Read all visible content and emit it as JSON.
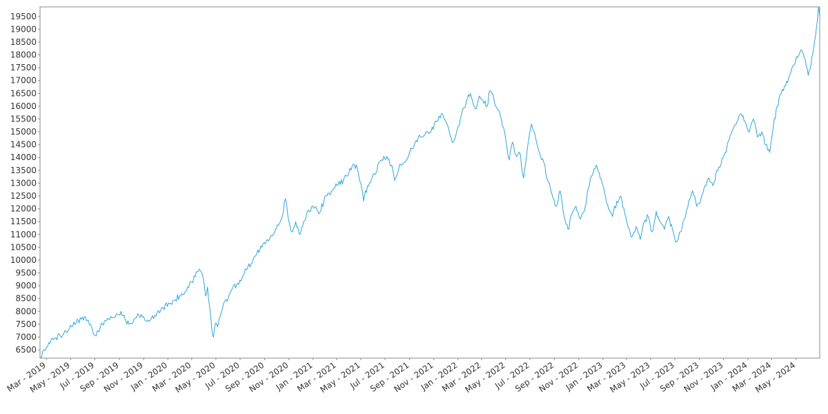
{
  "chart_data": {
    "type": "line",
    "title": "",
    "xlabel": "",
    "ylabel": "",
    "xlim": [
      "2019-02-13",
      "2024-06-30"
    ],
    "ylim": [
      6180,
      19870
    ],
    "grid": false,
    "legend": "none",
    "colors": {
      "line": "#2ba3db",
      "axis": "#888888",
      "text": "#333333"
    },
    "y_ticks": [
      6500,
      7000,
      7500,
      8000,
      8500,
      9000,
      9500,
      10000,
      10500,
      11000,
      11500,
      12000,
      12500,
      13000,
      13500,
      14000,
      14500,
      15000,
      15500,
      16000,
      16500,
      17000,
      17500,
      18000,
      18500,
      19000,
      19500
    ],
    "x_ticks": [
      {
        "date": "2019-03-01",
        "label": "Mar - 2019"
      },
      {
        "date": "2019-05-01",
        "label": "May - 2019"
      },
      {
        "date": "2019-07-01",
        "label": "Jul - 2019"
      },
      {
        "date": "2019-09-01",
        "label": "Sep - 2019"
      },
      {
        "date": "2019-11-01",
        "label": "Nov - 2019"
      },
      {
        "date": "2020-01-01",
        "label": "Jan - 2020"
      },
      {
        "date": "2020-03-01",
        "label": "Mar - 2020"
      },
      {
        "date": "2020-05-01",
        "label": "May - 2020"
      },
      {
        "date": "2020-07-01",
        "label": "Jul - 2020"
      },
      {
        "date": "2020-09-01",
        "label": "Sep - 2020"
      },
      {
        "date": "2020-11-01",
        "label": "Nov - 2020"
      },
      {
        "date": "2021-01-01",
        "label": "Jan - 2021"
      },
      {
        "date": "2021-03-01",
        "label": "Mar - 2021"
      },
      {
        "date": "2021-05-01",
        "label": "May - 2021"
      },
      {
        "date": "2021-07-01",
        "label": "Jul - 2021"
      },
      {
        "date": "2021-09-01",
        "label": "Sep - 2021"
      },
      {
        "date": "2021-11-01",
        "label": "Nov - 2021"
      },
      {
        "date": "2022-01-01",
        "label": "Jan - 2022"
      },
      {
        "date": "2022-03-01",
        "label": "Mar - 2022"
      },
      {
        "date": "2022-05-01",
        "label": "May - 2022"
      },
      {
        "date": "2022-07-01",
        "label": "Jul - 2022"
      },
      {
        "date": "2022-09-01",
        "label": "Sep - 2022"
      },
      {
        "date": "2022-11-01",
        "label": "Nov - 2022"
      },
      {
        "date": "2023-01-01",
        "label": "Jan - 2023"
      },
      {
        "date": "2023-03-01",
        "label": "Mar - 2023"
      },
      {
        "date": "2023-05-01",
        "label": "May - 2023"
      },
      {
        "date": "2023-07-01",
        "label": "Jul - 2023"
      },
      {
        "date": "2023-09-01",
        "label": "Sep - 2023"
      },
      {
        "date": "2023-11-01",
        "label": "Nov - 2023"
      },
      {
        "date": "2024-01-01",
        "label": "Jan - 2024"
      },
      {
        "date": "2024-03-01",
        "label": "Mar - 2024"
      },
      {
        "date": "2024-05-01",
        "label": "May - 2024"
      }
    ],
    "series": [
      {
        "points": [
          [
            "2019-02-14",
            6200
          ],
          [
            "2019-02-20",
            6450
          ],
          [
            "2019-03-01",
            6600
          ],
          [
            "2019-03-10",
            6750
          ],
          [
            "2019-03-22",
            6950
          ],
          [
            "2019-04-05",
            7050
          ],
          [
            "2019-04-20",
            7200
          ],
          [
            "2019-05-03",
            7400
          ],
          [
            "2019-05-15",
            7550
          ],
          [
            "2019-05-28",
            7700
          ],
          [
            "2019-06-05",
            7800
          ],
          [
            "2019-06-15",
            7650
          ],
          [
            "2019-06-25",
            7300
          ],
          [
            "2019-07-05",
            7050
          ],
          [
            "2019-07-15",
            7400
          ],
          [
            "2019-07-28",
            7650
          ],
          [
            "2019-08-10",
            7800
          ],
          [
            "2019-08-25",
            7900
          ],
          [
            "2019-09-05",
            8000
          ],
          [
            "2019-09-15",
            7700
          ],
          [
            "2019-09-25",
            7500
          ],
          [
            "2019-10-08",
            7700
          ],
          [
            "2019-10-20",
            7850
          ],
          [
            "2019-11-01",
            7800
          ],
          [
            "2019-11-10",
            7600
          ],
          [
            "2019-11-20",
            7700
          ],
          [
            "2019-12-05",
            7950
          ],
          [
            "2019-12-20",
            8150
          ],
          [
            "2020-01-05",
            8300
          ],
          [
            "2020-01-20",
            8450
          ],
          [
            "2020-02-05",
            8700
          ],
          [
            "2020-02-20",
            8950
          ],
          [
            "2020-03-01",
            9150
          ],
          [
            "2020-03-10",
            9350
          ],
          [
            "2020-03-20",
            9650
          ],
          [
            "2020-03-30",
            9300
          ],
          [
            "2020-04-05",
            8600
          ],
          [
            "2020-04-10",
            8950
          ],
          [
            "2020-04-15",
            8200
          ],
          [
            "2020-04-20",
            7400
          ],
          [
            "2020-04-25",
            7000
          ],
          [
            "2020-04-30",
            7550
          ],
          [
            "2020-05-05",
            7400
          ],
          [
            "2020-05-12",
            7800
          ],
          [
            "2020-05-20",
            8300
          ],
          [
            "2020-06-01",
            8500
          ],
          [
            "2020-06-12",
            8900
          ],
          [
            "2020-06-25",
            9100
          ],
          [
            "2020-07-08",
            9400
          ],
          [
            "2020-07-20",
            9700
          ],
          [
            "2020-08-01",
            9900
          ],
          [
            "2020-08-12",
            10250
          ],
          [
            "2020-08-25",
            10500
          ],
          [
            "2020-09-05",
            10750
          ],
          [
            "2020-09-15",
            10900
          ],
          [
            "2020-09-28",
            11200
          ],
          [
            "2020-10-05",
            11350
          ],
          [
            "2020-10-15",
            11700
          ],
          [
            "2020-10-23",
            12400
          ],
          [
            "2020-11-01",
            11500
          ],
          [
            "2020-11-08",
            11100
          ],
          [
            "2020-11-18",
            11500
          ],
          [
            "2020-11-28",
            11000
          ],
          [
            "2020-12-08",
            11500
          ],
          [
            "2020-12-20",
            11950
          ],
          [
            "2021-01-05",
            12050
          ],
          [
            "2021-01-15",
            11800
          ],
          [
            "2021-01-28",
            12300
          ],
          [
            "2021-02-10",
            12600
          ],
          [
            "2021-02-22",
            12800
          ],
          [
            "2021-03-05",
            12950
          ],
          [
            "2021-03-18",
            13100
          ],
          [
            "2021-04-01",
            13400
          ],
          [
            "2021-04-12",
            13750
          ],
          [
            "2021-04-22",
            13600
          ],
          [
            "2021-05-01",
            13000
          ],
          [
            "2021-05-08",
            12300
          ],
          [
            "2021-05-18",
            12900
          ],
          [
            "2021-05-28",
            13150
          ],
          [
            "2021-06-08",
            13400
          ],
          [
            "2021-06-18",
            13850
          ],
          [
            "2021-06-28",
            14050
          ],
          [
            "2021-07-08",
            13950
          ],
          [
            "2021-07-18",
            13700
          ],
          [
            "2021-07-25",
            13100
          ],
          [
            "2021-08-05",
            13600
          ],
          [
            "2021-08-18",
            13800
          ],
          [
            "2021-09-01",
            14200
          ],
          [
            "2021-09-15",
            14600
          ],
          [
            "2021-09-28",
            14800
          ],
          [
            "2021-10-12",
            15000
          ],
          [
            "2021-10-25",
            15000
          ],
          [
            "2021-11-08",
            15400
          ],
          [
            "2021-11-20",
            15700
          ],
          [
            "2021-12-01",
            15400
          ],
          [
            "2021-12-10",
            15000
          ],
          [
            "2021-12-20",
            14600
          ],
          [
            "2022-01-01",
            15200
          ],
          [
            "2022-01-10",
            15700
          ],
          [
            "2022-01-22",
            16200
          ],
          [
            "2022-02-01",
            16500
          ],
          [
            "2022-02-08",
            16100
          ],
          [
            "2022-02-16",
            15900
          ],
          [
            "2022-02-24",
            16400
          ],
          [
            "2022-03-05",
            16200
          ],
          [
            "2022-03-15",
            16000
          ],
          [
            "2022-03-22",
            16600
          ],
          [
            "2022-04-01",
            16300
          ],
          [
            "2022-04-10",
            15900
          ],
          [
            "2022-04-20",
            15500
          ],
          [
            "2022-05-01",
            14700
          ],
          [
            "2022-05-10",
            13900
          ],
          [
            "2022-05-18",
            14600
          ],
          [
            "2022-05-26",
            14100
          ],
          [
            "2022-06-05",
            14200
          ],
          [
            "2022-06-15",
            13200
          ],
          [
            "2022-06-25",
            14400
          ],
          [
            "2022-07-05",
            15300
          ],
          [
            "2022-07-15",
            14800
          ],
          [
            "2022-07-25",
            14200
          ],
          [
            "2022-08-05",
            13800
          ],
          [
            "2022-08-15",
            13100
          ],
          [
            "2022-08-25",
            12600
          ],
          [
            "2022-09-05",
            12100
          ],
          [
            "2022-09-15",
            12700
          ],
          [
            "2022-09-25",
            11700
          ],
          [
            "2022-10-05",
            11200
          ],
          [
            "2022-10-15",
            11800
          ],
          [
            "2022-10-25",
            12100
          ],
          [
            "2022-11-05",
            11600
          ],
          [
            "2022-11-15",
            11900
          ],
          [
            "2022-11-25",
            12800
          ],
          [
            "2022-12-05",
            13300
          ],
          [
            "2022-12-15",
            13700
          ],
          [
            "2022-12-25",
            13200
          ],
          [
            "2023-01-05",
            12600
          ],
          [
            "2023-01-15",
            12000
          ],
          [
            "2023-01-25",
            11700
          ],
          [
            "2023-02-05",
            12300
          ],
          [
            "2023-02-15",
            12500
          ],
          [
            "2023-02-25",
            11800
          ],
          [
            "2023-03-05",
            11300
          ],
          [
            "2023-03-15",
            10900
          ],
          [
            "2023-03-25",
            11300
          ],
          [
            "2023-04-05",
            10800
          ],
          [
            "2023-04-15",
            11500
          ],
          [
            "2023-04-25",
            11700
          ],
          [
            "2023-05-05",
            11100
          ],
          [
            "2023-05-15",
            11900
          ],
          [
            "2023-05-25",
            11500
          ],
          [
            "2023-06-05",
            11200
          ],
          [
            "2023-06-15",
            11700
          ],
          [
            "2023-06-25",
            11200
          ],
          [
            "2023-07-05",
            10700
          ],
          [
            "2023-07-15",
            11100
          ],
          [
            "2023-07-25",
            11600
          ],
          [
            "2023-08-05",
            12300
          ],
          [
            "2023-08-15",
            12700
          ],
          [
            "2023-08-25",
            12100
          ],
          [
            "2023-09-05",
            12400
          ],
          [
            "2023-09-15",
            12900
          ],
          [
            "2023-09-25",
            13200
          ],
          [
            "2023-10-05",
            12900
          ],
          [
            "2023-10-15",
            13500
          ],
          [
            "2023-10-25",
            13700
          ],
          [
            "2023-11-05",
            14200
          ],
          [
            "2023-11-15",
            14700
          ],
          [
            "2023-11-25",
            15100
          ],
          [
            "2023-12-05",
            15400
          ],
          [
            "2023-12-15",
            15700
          ],
          [
            "2023-12-25",
            15400
          ],
          [
            "2024-01-05",
            15000
          ],
          [
            "2024-01-15",
            15500
          ],
          [
            "2024-01-25",
            14800
          ],
          [
            "2024-02-05",
            15000
          ],
          [
            "2024-02-15",
            14500
          ],
          [
            "2024-02-25",
            14200
          ],
          [
            "2024-03-05",
            15200
          ],
          [
            "2024-03-15",
            16000
          ],
          [
            "2024-03-25",
            16500
          ],
          [
            "2024-04-05",
            16800
          ],
          [
            "2024-04-15",
            17200
          ],
          [
            "2024-04-25",
            17600
          ],
          [
            "2024-05-05",
            17900
          ],
          [
            "2024-05-15",
            18200
          ],
          [
            "2024-05-25",
            17800
          ],
          [
            "2024-06-01",
            17200
          ],
          [
            "2024-06-08",
            17600
          ],
          [
            "2024-06-15",
            18300
          ],
          [
            "2024-06-20",
            18800
          ],
          [
            "2024-06-24",
            19300
          ],
          [
            "2024-06-27",
            19850
          ],
          [
            "2024-06-30",
            19500
          ]
        ]
      }
    ]
  }
}
